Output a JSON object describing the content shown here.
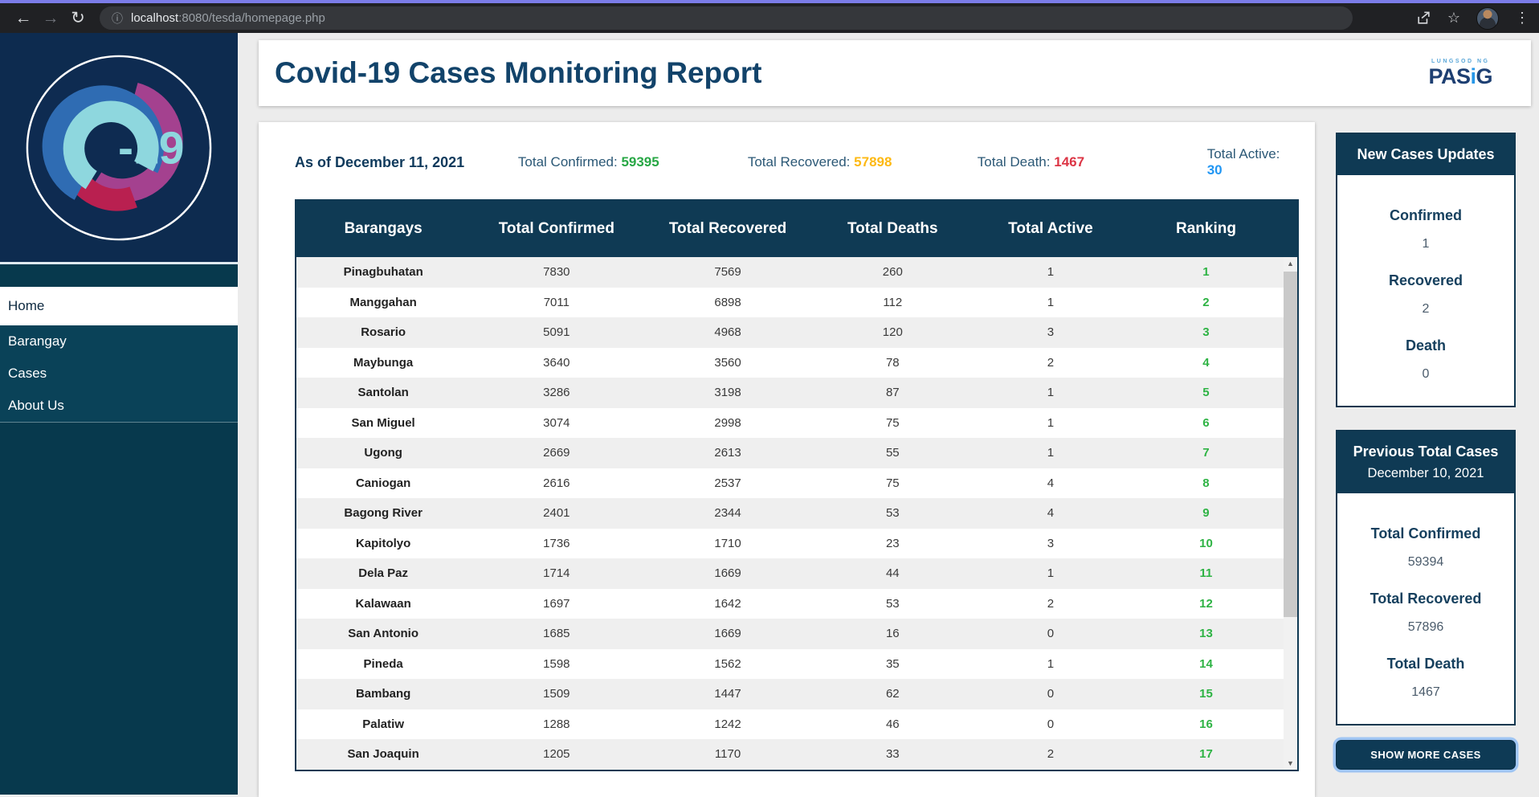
{
  "browser": {
    "url_host": "localhost",
    "url_rest": ":8080/tesda/homepage.php"
  },
  "sidebar": {
    "logo_text": "-19",
    "items": [
      {
        "label": "Home",
        "active": true
      },
      {
        "label": "Barangay",
        "active": false
      },
      {
        "label": "Cases",
        "active": false
      },
      {
        "label": "About Us",
        "active": false
      }
    ]
  },
  "header": {
    "title": "Covid-19 Cases Monitoring Report",
    "brand_top": "LUNGSOD NG",
    "brand_name_a": "PAS",
    "brand_name_i": "i",
    "brand_name_b": "G"
  },
  "stats": {
    "as_of": "As of December 11, 2021",
    "items": [
      {
        "label": "Total Confirmed:",
        "value": "59395",
        "color": "#28a745"
      },
      {
        "label": "Total Recovered:",
        "value": "57898",
        "color": "#fdb913"
      },
      {
        "label": "Total Death:",
        "value": "1467",
        "color": "#dc3545"
      },
      {
        "label": "Total Active:",
        "value": "30",
        "color": "#2196f3"
      }
    ]
  },
  "table": {
    "headers": [
      "Barangays",
      "Total Confirmed",
      "Total Recovered",
      "Total Deaths",
      "Total Active",
      "Ranking"
    ],
    "rows": [
      {
        "barangay": "Pinagbuhatan",
        "confirmed": 7830,
        "recovered": 7569,
        "deaths": 260,
        "active": 1,
        "ranking": 1
      },
      {
        "barangay": "Manggahan",
        "confirmed": 7011,
        "recovered": 6898,
        "deaths": 112,
        "active": 1,
        "ranking": 2
      },
      {
        "barangay": "Rosario",
        "confirmed": 5091,
        "recovered": 4968,
        "deaths": 120,
        "active": 3,
        "ranking": 3
      },
      {
        "barangay": "Maybunga",
        "confirmed": 3640,
        "recovered": 3560,
        "deaths": 78,
        "active": 2,
        "ranking": 4
      },
      {
        "barangay": "Santolan",
        "confirmed": 3286,
        "recovered": 3198,
        "deaths": 87,
        "active": 1,
        "ranking": 5
      },
      {
        "barangay": "San Miguel",
        "confirmed": 3074,
        "recovered": 2998,
        "deaths": 75,
        "active": 1,
        "ranking": 6
      },
      {
        "barangay": "Ugong",
        "confirmed": 2669,
        "recovered": 2613,
        "deaths": 55,
        "active": 1,
        "ranking": 7
      },
      {
        "barangay": "Caniogan",
        "confirmed": 2616,
        "recovered": 2537,
        "deaths": 75,
        "active": 4,
        "ranking": 8
      },
      {
        "barangay": "Bagong River",
        "confirmed": 2401,
        "recovered": 2344,
        "deaths": 53,
        "active": 4,
        "ranking": 9
      },
      {
        "barangay": "Kapitolyo",
        "confirmed": 1736,
        "recovered": 1710,
        "deaths": 23,
        "active": 3,
        "ranking": 10
      },
      {
        "barangay": "Dela Paz",
        "confirmed": 1714,
        "recovered": 1669,
        "deaths": 44,
        "active": 1,
        "ranking": 11
      },
      {
        "barangay": "Kalawaan",
        "confirmed": 1697,
        "recovered": 1642,
        "deaths": 53,
        "active": 2,
        "ranking": 12
      },
      {
        "barangay": "San Antonio",
        "confirmed": 1685,
        "recovered": 1669,
        "deaths": 16,
        "active": 0,
        "ranking": 13
      },
      {
        "barangay": "Pineda",
        "confirmed": 1598,
        "recovered": 1562,
        "deaths": 35,
        "active": 1,
        "ranking": 14
      },
      {
        "barangay": "Bambang",
        "confirmed": 1509,
        "recovered": 1447,
        "deaths": 62,
        "active": 0,
        "ranking": 15
      },
      {
        "barangay": "Palatiw",
        "confirmed": 1288,
        "recovered": 1242,
        "deaths": 46,
        "active": 0,
        "ranking": 16
      },
      {
        "barangay": "San Joaquin",
        "confirmed": 1205,
        "recovered": 1170,
        "deaths": 33,
        "active": 2,
        "ranking": 17
      }
    ]
  },
  "new_cases": {
    "title": "New Cases Updates",
    "items": [
      {
        "label": "Confirmed",
        "value": "1"
      },
      {
        "label": "Recovered",
        "value": "2"
      },
      {
        "label": "Death",
        "value": "0"
      }
    ]
  },
  "previous": {
    "title": "Previous Total Cases",
    "date": "December 10, 2021",
    "items": [
      {
        "label": "Total Confirmed",
        "value": "59394"
      },
      {
        "label": "Total Recovered",
        "value": "57896"
      },
      {
        "label": "Total Death",
        "value": "1467"
      }
    ]
  },
  "show_more": {
    "label": "SHOW MORE CASES"
  },
  "colors": {
    "navy": "#0f3a54",
    "sidebar": "#07394d",
    "confirmed_green": "#28a745",
    "recovered_orange": "#fdb913",
    "death_red": "#dc3545",
    "active_blue": "#2196f3",
    "ranking_green": "#2eb344",
    "chrome_accent": "#7b7ce8"
  }
}
